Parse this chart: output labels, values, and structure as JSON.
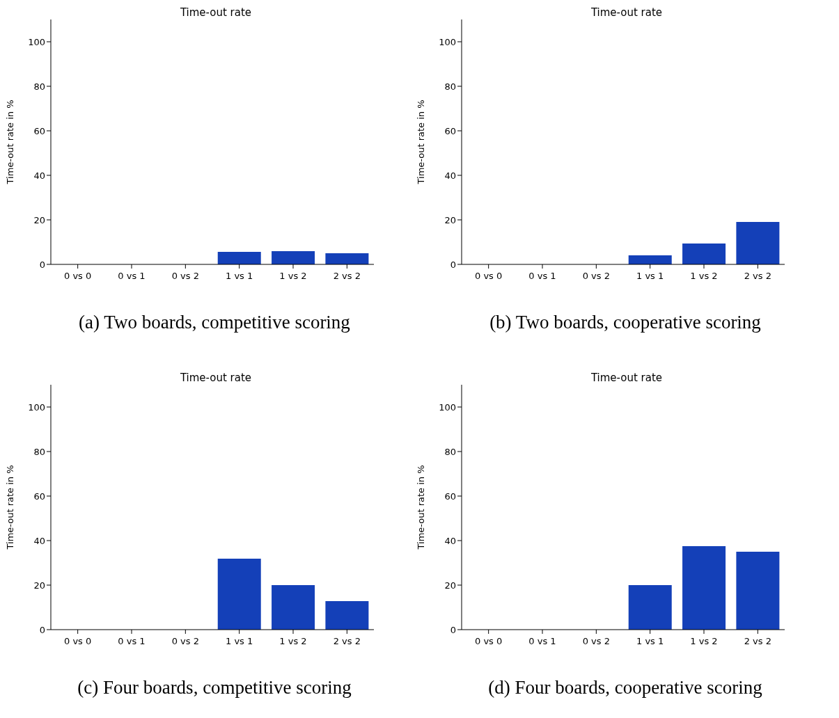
{
  "chart_data": [
    {
      "type": "bar",
      "title": "Time-out rate",
      "ylabel": "Time-out rate in %",
      "categories": [
        "0 vs 0",
        "0 vs 1",
        "0 vs 2",
        "1 vs 1",
        "1 vs 2",
        "2 vs 2"
      ],
      "values": [
        0,
        0,
        0,
        5.6,
        5.9,
        5.0
      ],
      "color": "#1440b8",
      "ylim": [
        0,
        110
      ],
      "yticks": [
        0,
        20,
        40,
        60,
        80,
        100
      ],
      "grid": false,
      "legend": false,
      "annotations": [
        "(a) Two boards, competitive scoring"
      ]
    },
    {
      "type": "bar",
      "title": "Time-out rate",
      "ylabel": "Time-out rate in %",
      "categories": [
        "0 vs 0",
        "0 vs 1",
        "0 vs 2",
        "1 vs 1",
        "1 vs 2",
        "2 vs 2"
      ],
      "values": [
        0,
        0,
        0,
        4.1,
        9.4,
        19.1
      ],
      "color": "#1440b8",
      "ylim": [
        0,
        110
      ],
      "yticks": [
        0,
        20,
        40,
        60,
        80,
        100
      ],
      "grid": false,
      "legend": false,
      "annotations": [
        "(b) Two boards, cooperative scoring"
      ]
    },
    {
      "type": "bar",
      "title": "Time-out rate",
      "ylabel": "Time-out rate in %",
      "categories": [
        "0 vs 0",
        "0 vs 1",
        "0 vs 2",
        "1 vs 1",
        "1 vs 2",
        "2 vs 2"
      ],
      "values": [
        0,
        0,
        0,
        31.9,
        20.0,
        12.8
      ],
      "color": "#1440b8",
      "ylim": [
        0,
        110
      ],
      "yticks": [
        0,
        20,
        40,
        60,
        80,
        100
      ],
      "grid": false,
      "legend": false,
      "annotations": [
        "(c) Four boards, competitive scoring"
      ]
    },
    {
      "type": "bar",
      "title": "Time-out rate",
      "ylabel": "Time-out rate in %",
      "categories": [
        "0 vs 0",
        "0 vs 1",
        "0 vs 2",
        "1 vs 1",
        "1 vs 2",
        "2 vs 2"
      ],
      "values": [
        0,
        0,
        0,
        20.0,
        37.5,
        35.0
      ],
      "color": "#1440b8",
      "ylim": [
        0,
        110
      ],
      "yticks": [
        0,
        20,
        40,
        60,
        80,
        100
      ],
      "grid": false,
      "legend": false,
      "annotations": [
        "(d) Four boards, cooperative scoring"
      ]
    }
  ]
}
